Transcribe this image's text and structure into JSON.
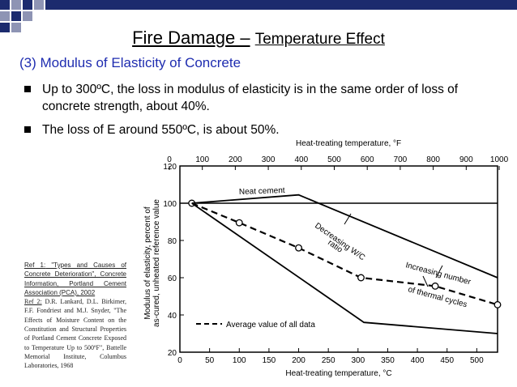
{
  "slide": {
    "title_main": "Fire Damage –",
    "title_sub": "Temperature Effect",
    "subheading": "(3) Modulus of Elasticity of Concrete",
    "bullets": [
      {
        "line1": "Up to 300ºC, the loss in modulus of elasticity is in the same order of loss of",
        "line2": "concrete strength, about 40%."
      },
      {
        "line1": "The loss of E around 550ºC, is about 50%.",
        "line2": ""
      }
    ],
    "colors": {
      "accent_blue": "#1f2db0",
      "deco_navy": "#1c2b6e",
      "deco_grey": "#8e94b4"
    }
  },
  "references": {
    "ref1_label": "Ref 1:",
    "ref1_text": " \"Types and Causes of Concrete Deterioration\", Concrete Information, Portland Cement Association (PCA), 2002",
    "ref2_label": "Ref 2:",
    "ref2_text": " D.R. Lankard, D.L. Birkimer, F.F. Fondriest and M.J. Snyder, \"The Effects of Moisture Content on the Constitution and Structural Properties of Portland Cement Concrete Exposed to Temperature Up to 500ºF\", Battelle Memorial Institute, Columbus Laboratories, 1968"
  },
  "chart_data": {
    "type": "line",
    "top_axis_label": "Heat-treating temperature, °F",
    "xlabel": "Heat-treating temperature, °C",
    "ylabel_line1": "Modulus of elasticity, percent of",
    "ylabel_line2": "as-cured, unheated reference value",
    "xlim": [
      0,
      535
    ],
    "ylim": [
      20,
      120
    ],
    "x_ticks": [
      "0",
      "50",
      "100",
      "150",
      "200",
      "250",
      "300",
      "350",
      "400",
      "450",
      "500"
    ],
    "y_ticks": [
      "20",
      "40",
      "60",
      "80",
      "100",
      "120"
    ],
    "top_ticks": [
      "0",
      "100",
      "200",
      "300",
      "400",
      "500",
      "600",
      "700",
      "800",
      "900",
      "1000"
    ],
    "grid": false,
    "reference_line": {
      "y": 100
    },
    "series": [
      {
        "name": "Average value of all data",
        "style": "dashed",
        "markers": true,
        "x": [
          20,
          100,
          200,
          305,
          430,
          535
        ],
        "y": [
          100,
          89.5,
          76,
          60,
          55.5,
          45.5
        ]
      },
      {
        "name": "Neat cement",
        "style": "solid",
        "markers": false,
        "x": [
          20,
          200,
          535
        ],
        "y": [
          100,
          104.5,
          60
        ]
      },
      {
        "name": "",
        "style": "solid",
        "markers": false,
        "x": [
          20,
          310,
          535
        ],
        "y": [
          100,
          36,
          30
        ]
      }
    ],
    "annotations": {
      "neat_cement": "Neat cement",
      "decreasing_1": "Decreasing W/C",
      "decreasing_2": "ratio",
      "increasing_1": "Increasing number",
      "increasing_2": "of thermal cycles",
      "legend_label": "Average value of all data"
    },
    "colors": {
      "line": "#000000"
    }
  }
}
